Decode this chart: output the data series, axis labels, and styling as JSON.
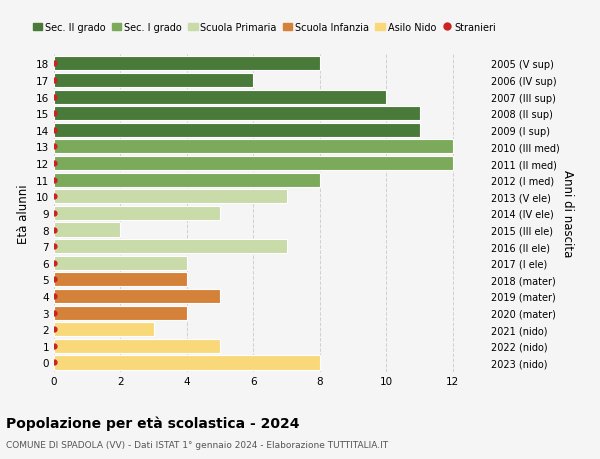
{
  "ages": [
    0,
    1,
    2,
    3,
    4,
    5,
    6,
    7,
    8,
    9,
    10,
    11,
    12,
    13,
    14,
    15,
    16,
    17,
    18
  ],
  "right_labels": [
    "2023 (nido)",
    "2022 (nido)",
    "2021 (nido)",
    "2020 (mater)",
    "2019 (mater)",
    "2018 (mater)",
    "2017 (I ele)",
    "2016 (II ele)",
    "2015 (III ele)",
    "2014 (IV ele)",
    "2013 (V ele)",
    "2012 (I med)",
    "2011 (II med)",
    "2010 (III med)",
    "2009 (I sup)",
    "2008 (II sup)",
    "2007 (III sup)",
    "2006 (IV sup)",
    "2005 (V sup)"
  ],
  "values": [
    8,
    5,
    3,
    4,
    5,
    4,
    4,
    7,
    2,
    5,
    7,
    8,
    12,
    12,
    11,
    11,
    10,
    6,
    8
  ],
  "colors": [
    "#f9d87a",
    "#f9d87a",
    "#f9d87a",
    "#d4823a",
    "#d4823a",
    "#d4823a",
    "#c8dba8",
    "#c8dba8",
    "#c8dba8",
    "#c8dba8",
    "#c8dba8",
    "#7aaa5a",
    "#7aaa5a",
    "#7aaa5a",
    "#4a7a3a",
    "#4a7a3a",
    "#4a7a3a",
    "#4a7a3a",
    "#4a7a3a"
  ],
  "legend_labels": [
    "Sec. II grado",
    "Sec. I grado",
    "Scuola Primaria",
    "Scuola Infanzia",
    "Asilo Nido",
    "Stranieri"
  ],
  "legend_colors": [
    "#4a7a3a",
    "#7aaa5a",
    "#c8dba8",
    "#d4823a",
    "#f9d87a",
    "#cc2222"
  ],
  "stranieri_marker_color": "#cc2222",
  "title": "Popolazione per età scolastica - 2024",
  "subtitle": "COMUNE DI SPADOLA (VV) - Dati ISTAT 1° gennaio 2024 - Elaborazione TUTTITALIA.IT",
  "ylabel": "Età alunni",
  "right_ylabel": "Anni di nascita",
  "xlim": [
    0,
    13
  ],
  "xticks": [
    0,
    2,
    4,
    6,
    8,
    10,
    12
  ],
  "background_color": "#f5f5f5",
  "grid_color": "#d0d0d0",
  "bar_edge_color": "white",
  "bar_height": 0.85
}
